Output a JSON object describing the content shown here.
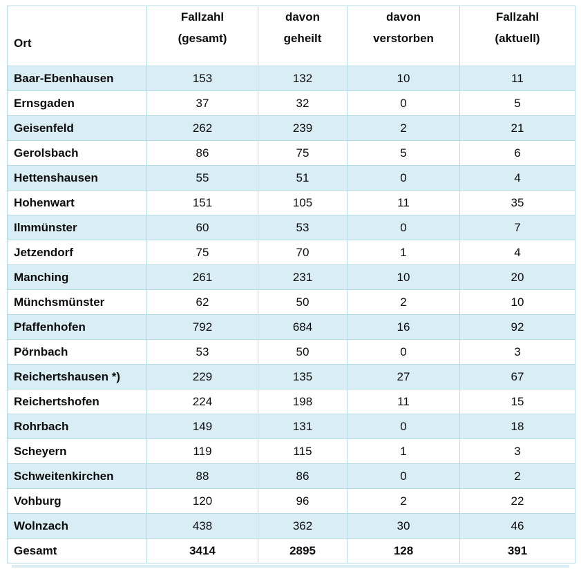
{
  "table": {
    "title_semantic": "COVID-19 Fallzahlen nach Ort",
    "header": {
      "ort": "Ort",
      "gesamt_line1": "Fallzahl",
      "gesamt_line2": "(gesamt)",
      "geheilt_line1": "davon",
      "geheilt_line2": "geheilt",
      "verstorben_line1": "davon",
      "verstorben_line2": "verstorben",
      "aktuell_line1": "Fallzahl",
      "aktuell_line2": "(aktuell)"
    },
    "rows": [
      {
        "ort": "Baar-Ebenhausen",
        "gesamt": "153",
        "geheilt": "132",
        "verstorben": "10",
        "aktuell": "11"
      },
      {
        "ort": "Ernsgaden",
        "gesamt": "37",
        "geheilt": "32",
        "verstorben": "0",
        "aktuell": "5"
      },
      {
        "ort": "Geisenfeld",
        "gesamt": "262",
        "geheilt": "239",
        "verstorben": "2",
        "aktuell": "21"
      },
      {
        "ort": "Gerolsbach",
        "gesamt": "86",
        "geheilt": "75",
        "verstorben": "5",
        "aktuell": "6"
      },
      {
        "ort": "Hettenshausen",
        "gesamt": "55",
        "geheilt": "51",
        "verstorben": "0",
        "aktuell": "4"
      },
      {
        "ort": "Hohenwart",
        "gesamt": "151",
        "geheilt": "105",
        "verstorben": "11",
        "aktuell": "35"
      },
      {
        "ort": "Ilmmünster",
        "gesamt": "60",
        "geheilt": "53",
        "verstorben": "0",
        "aktuell": "7"
      },
      {
        "ort": "Jetzendorf",
        "gesamt": "75",
        "geheilt": "70",
        "verstorben": "1",
        "aktuell": "4"
      },
      {
        "ort": "Manching",
        "gesamt": "261",
        "geheilt": "231",
        "verstorben": "10",
        "aktuell": "20"
      },
      {
        "ort": "Münchsmünster",
        "gesamt": "62",
        "geheilt": "50",
        "verstorben": "2",
        "aktuell": "10"
      },
      {
        "ort": "Pfaffenhofen",
        "gesamt": "792",
        "geheilt": "684",
        "verstorben": "16",
        "aktuell": "92"
      },
      {
        "ort": "Pörnbach",
        "gesamt": "53",
        "geheilt": "50",
        "verstorben": "0",
        "aktuell": "3"
      },
      {
        "ort": "Reichertshausen *)",
        "gesamt": "229",
        "geheilt": "135",
        "verstorben": "27",
        "aktuell": "67"
      },
      {
        "ort": "Reichertshofen",
        "gesamt": "224",
        "geheilt": "198",
        "verstorben": "11",
        "aktuell": "15"
      },
      {
        "ort": "Rohrbach",
        "gesamt": "149",
        "geheilt": "131",
        "verstorben": "0",
        "aktuell": "18"
      },
      {
        "ort": "Scheyern",
        "gesamt": "119",
        "geheilt": "115",
        "verstorben": "1",
        "aktuell": "3"
      },
      {
        "ort": "Schweitenkirchen",
        "gesamt": "88",
        "geheilt": "86",
        "verstorben": "0",
        "aktuell": "2"
      },
      {
        "ort": "Vohburg",
        "gesamt": "120",
        "geheilt": "96",
        "verstorben": "2",
        "aktuell": "22"
      },
      {
        "ort": "Wolnzach",
        "gesamt": "438",
        "geheilt": "362",
        "verstorben": "30",
        "aktuell": "46"
      }
    ],
    "total_row": {
      "ort": "Gesamt",
      "gesamt": "3414",
      "geheilt": "2895",
      "verstorben": "128",
      "aktuell": "391"
    }
  },
  "colors": {
    "row_shaded": "#d9edf4",
    "border": "#b5dbe8",
    "text": "#0c0c0c"
  }
}
